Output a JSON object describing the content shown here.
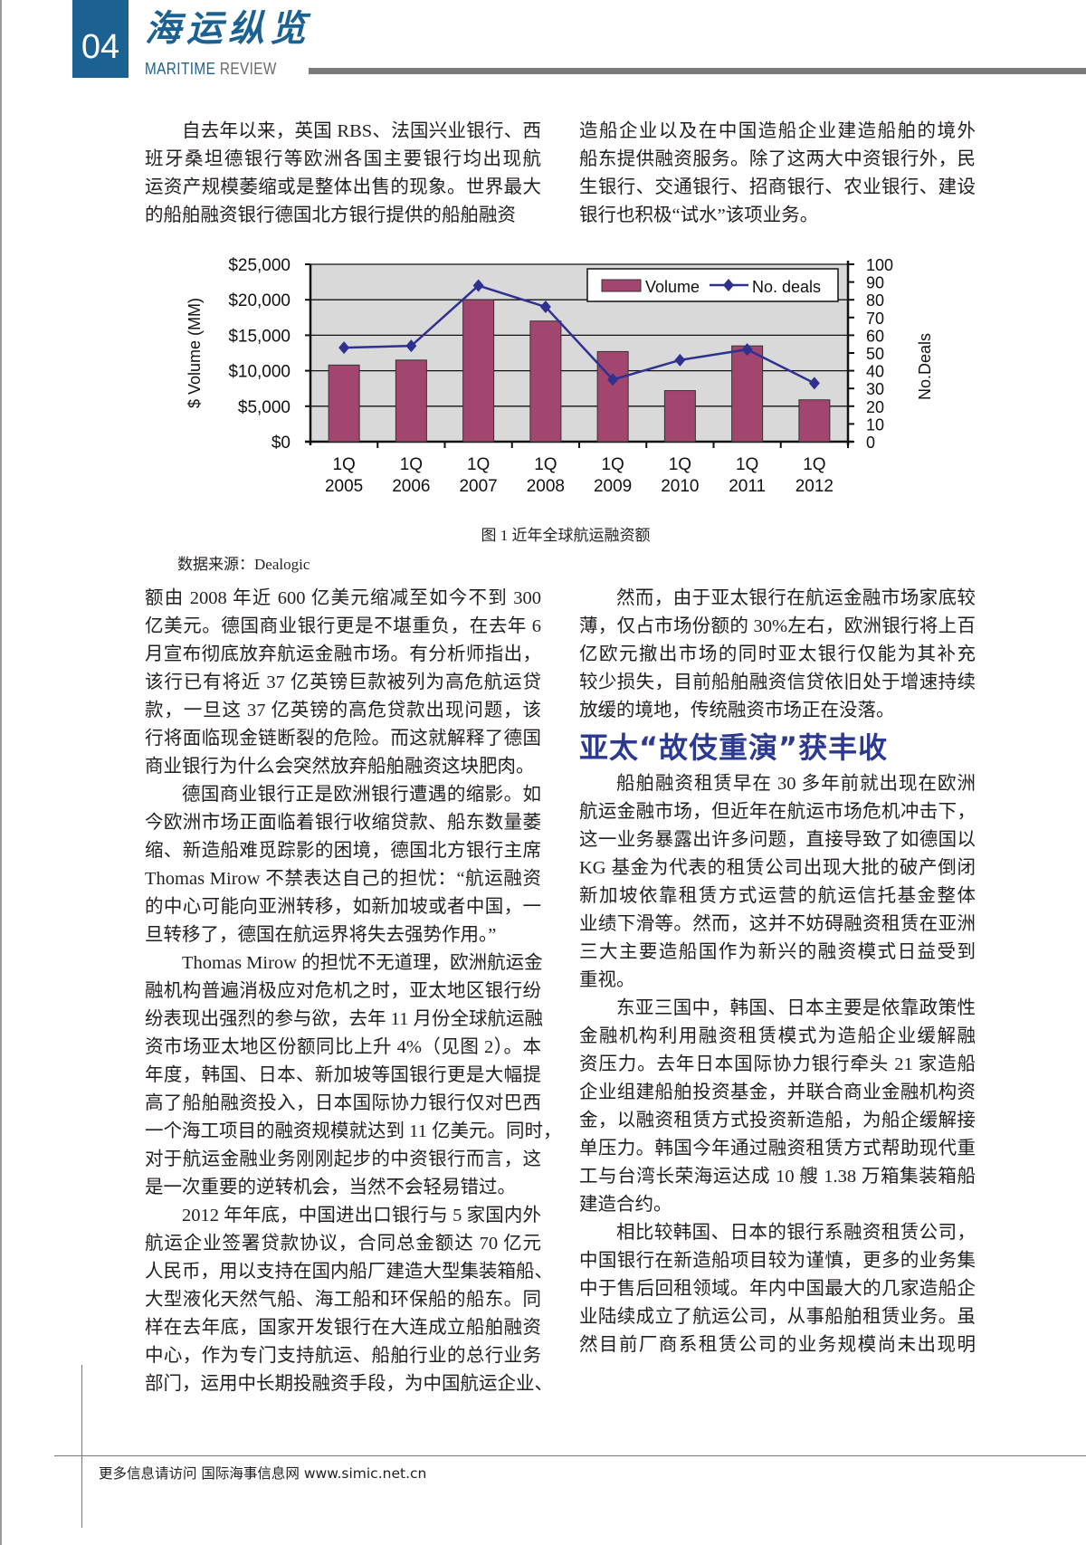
{
  "header": {
    "page_number": "04",
    "magazine_title": "海运纵览",
    "subtitle_a": "MARITIME",
    "subtitle_b": "REVIEW",
    "brand_color": "#1b6192"
  },
  "top_left": [
    {
      "lines": [
        "自去年以来，英国 RBS、法国兴业银行、西",
        "班牙桑坦德银行等欧洲各国主要银行均出现航",
        "运资产规模萎缩或是整体出售的现象。世界最大",
        "的船舶融资银行德国北方银行提供的船舶融资"
      ]
    }
  ],
  "top_right": [
    {
      "lines": [
        "造船企业以及在中国造船企业建造船舶的境外",
        "船东提供融资服务。除了这两大中资银行外，民",
        "生银行、交通银行、招商银行、农业银行、建设",
        "银行也积极“试水”该项业务。"
      ]
    }
  ],
  "figure": {
    "caption": "图 1  近年全球航运融资额",
    "source": "数据来源：Dealogic"
  },
  "chart_data": {
    "type": "bar",
    "categories": [
      "1Q 2005",
      "1Q 2006",
      "1Q 2007",
      "1Q 2008",
      "1Q 2009",
      "1Q 2010",
      "1Q 2011",
      "1Q 2012"
    ],
    "category_lines": [
      [
        "1Q",
        "2005"
      ],
      [
        "1Q",
        "2006"
      ],
      [
        "1Q",
        "2007"
      ],
      [
        "1Q",
        "2008"
      ],
      [
        "1Q",
        "2009"
      ],
      [
        "1Q",
        "2010"
      ],
      [
        "1Q",
        "2011"
      ],
      [
        "1Q",
        "2012"
      ]
    ],
    "series": [
      {
        "name": "Volume",
        "type": "bar",
        "axis": "left",
        "values": [
          10800,
          11500,
          20000,
          17000,
          12700,
          7200,
          13500,
          5900
        ],
        "color": "#a3466f"
      },
      {
        "name": "No. deals",
        "type": "line",
        "axis": "right",
        "values": [
          53,
          54,
          88,
          76,
          35,
          46,
          52,
          33
        ],
        "color": "#2e3192"
      }
    ],
    "ylabel": "$ Volume (MM)",
    "ylabel_right": "No.Deals",
    "ylim": [
      0,
      25000
    ],
    "ylim_right": [
      0,
      100
    ],
    "yticks": [
      "$0",
      "$5,000",
      "$10,000",
      "$15,000",
      "$20,000",
      "$25,000"
    ],
    "yticks_right": [
      "0",
      "10",
      "20",
      "30",
      "40",
      "50",
      "60",
      "70",
      "80",
      "90",
      "100"
    ],
    "grid": true,
    "plot_background": "#d9d9d9",
    "legend_position": "top-right"
  },
  "bottom_left": [
    {
      "cont": true,
      "lines": [
        "额由 2008 年近 600 亿美元缩减至如今不到 300",
        "亿美元。德国商业银行更是不堪重负，在去年 6",
        "月宣布彻底放弃航运金融市场。有分析师指出，",
        "该行已有将近 37 亿英镑巨款被列为高危航运贷",
        "款，一旦这 37 亿英镑的高危贷款出现问题，该",
        "行将面临现金链断裂的危险。而这就解释了德国",
        "商业银行为什么会突然放弃船舶融资这块肥肉。"
      ]
    },
    {
      "lines": [
        "德国商业银行正是欧洲银行遭遇的缩影。如",
        "今欧洲市场正面临着银行收缩贷款、船东数量萎",
        "缩、新造船难觅踪影的困境，德国北方银行主席",
        "Thomas Mirow 不禁表达自己的担忧：“航运融资",
        "的中心可能向亚洲转移，如新加坡或者中国，一",
        "旦转移了，德国在航运界将失去强势作用。”"
      ]
    },
    {
      "lines": [
        "Thomas Mirow 的担忧不无道理，欧洲航运金",
        "融机构普遍消极应对危机之时，亚太地区银行纷",
        "纷表现出强烈的参与欲，去年 11 月份全球航运融",
        "资市场亚太地区份额同比上升 4%（见图 2）。本",
        "年度，韩国、日本、新加坡等国银行更是大幅提",
        "高了船舶融资投入，日本国际协力银行仅对巴西",
        "一个海工项目的融资规模就达到 11 亿美元。同时，",
        "对于航运金融业务刚刚起步的中资银行而言，这",
        "是一次重要的逆转机会，当然不会轻易错过。"
      ]
    },
    {
      "cont_end": true,
      "lines": [
        "2012 年年底，中国进出口银行与 5 家国内外",
        "航运企业签署贷款协议，合同总金额达 70 亿元",
        "人民币，用以支持在国内船厂建造大型集装箱船、",
        "大型液化天然气船、海工船和环保船的船东。同",
        "样在去年底，国家开发银行在大连成立船舶融资",
        "中心，作为专门支持航运、船舶行业的总行业务",
        "部门，运用中长期投融资手段，为中国航运企业、"
      ]
    }
  ],
  "bottom_right": {
    "para1": {
      "lines": [
        "然而，由于亚太银行在航运金融市场家底较",
        "薄，仅占市场份额的 30%左右，欧洲银行将上百",
        "亿欧元撤出市场的同时亚太银行仅能为其补充",
        "较少损失，目前船舶融资信贷依旧处于增速持续",
        "放缓的境地，传统融资市场正在没落。"
      ]
    },
    "heading": "亚太“故伎重演”获丰收",
    "heading_color": "#2b3990",
    "paras": [
      {
        "lines": [
          "船舶融资租赁早在 30 多年前就出现在欧洲",
          "航运金融市场，但近年在航运市场危机冲击下，",
          "这一业务暴露出许多问题，直接导致了如德国以",
          "KG 基金为代表的租赁公司出现大批的破产倒闭",
          "新加坡依靠租赁方式运营的航运信托基金整体",
          "业绩下滑等。然而，这并不妨碍融资租赁在亚洲",
          "三大主要造船国作为新兴的融资模式日益受到",
          "重视。"
        ]
      },
      {
        "lines": [
          "东亚三国中，韩国、日本主要是依靠政策性",
          "金融机构利用融资租赁模式为造船企业缓解融",
          "资压力。去年日本国际协力银行牵头 21 家造船",
          "企业组建船舶投资基金，并联合商业金融机构资",
          "金，以融资租赁方式投资新造船，为船企缓解接",
          "单压力。韩国今年通过融资租赁方式帮助现代重",
          "工与台湾长荣海运达成 10 艘 1.38 万箱集装箱船",
          "建造合约。"
        ]
      },
      {
        "cont_end": true,
        "lines": [
          "相比较韩国、日本的银行系融资租赁公司，",
          "中国银行在新造船项目较为谨慎，更多的业务集",
          "中于售后回租领域。年内中国最大的几家造船企",
          "业陆续成立了航运公司，从事船舶租赁业务。虽",
          "然目前厂商系租赁公司的业务规模尚未出现明"
        ]
      }
    ]
  },
  "footer": {
    "text": "更多信息请访问  国际海事信息网  www.simic.net.cn"
  }
}
